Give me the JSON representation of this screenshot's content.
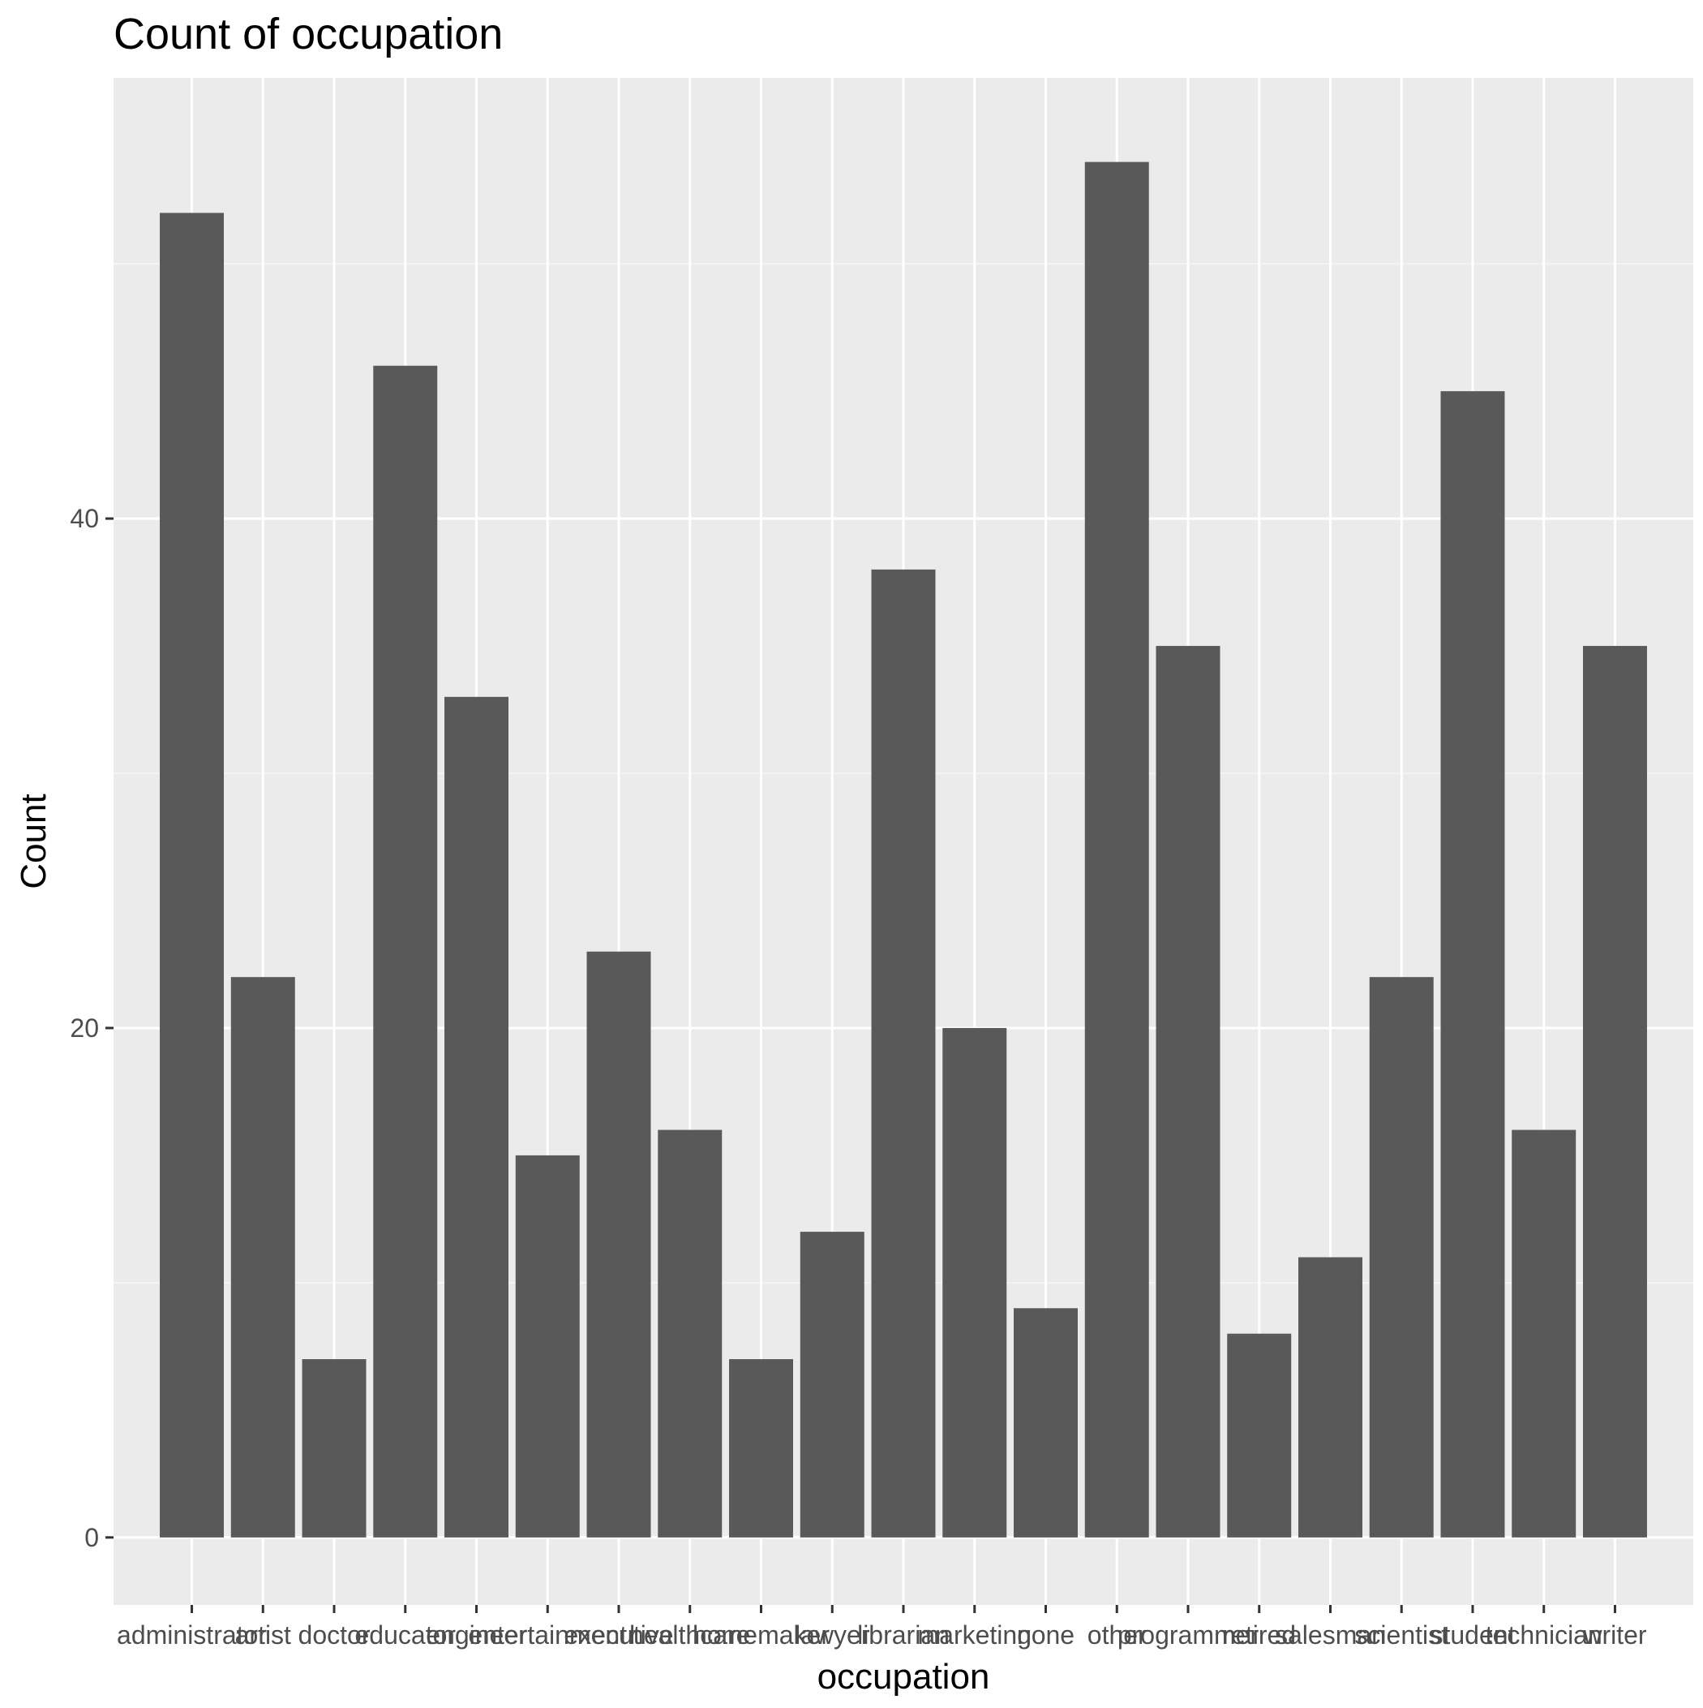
{
  "chart_data": {
    "type": "bar",
    "title": "Count of occupation",
    "xlabel": "occupation",
    "ylabel": "Count",
    "categories": [
      "administrator",
      "artist",
      "doctor",
      "educator",
      "engineer",
      "entertainment",
      "executive",
      "healthcare",
      "homemaker",
      "lawyer",
      "librarian",
      "marketing",
      "none",
      "other",
      "programmer",
      "retired",
      "salesman",
      "scientist",
      "student",
      "technician",
      "writer"
    ],
    "values": [
      52,
      22,
      7,
      46,
      33,
      15,
      23,
      16,
      7,
      12,
      38,
      20,
      9,
      54,
      35,
      8,
      11,
      22,
      45,
      16,
      35
    ],
    "yticks": [
      0,
      20,
      40
    ],
    "ylim": [
      -2.65,
      57.3
    ],
    "grid": true,
    "legend": "none",
    "colors": {
      "bar": "#595959",
      "panel": "#ebebeb",
      "grid_major": "#ffffff",
      "grid_minor": "#f5f5f5",
      "tick_text": "#4d4d4d",
      "tick_mark": "#333333",
      "text": "#000000"
    }
  }
}
